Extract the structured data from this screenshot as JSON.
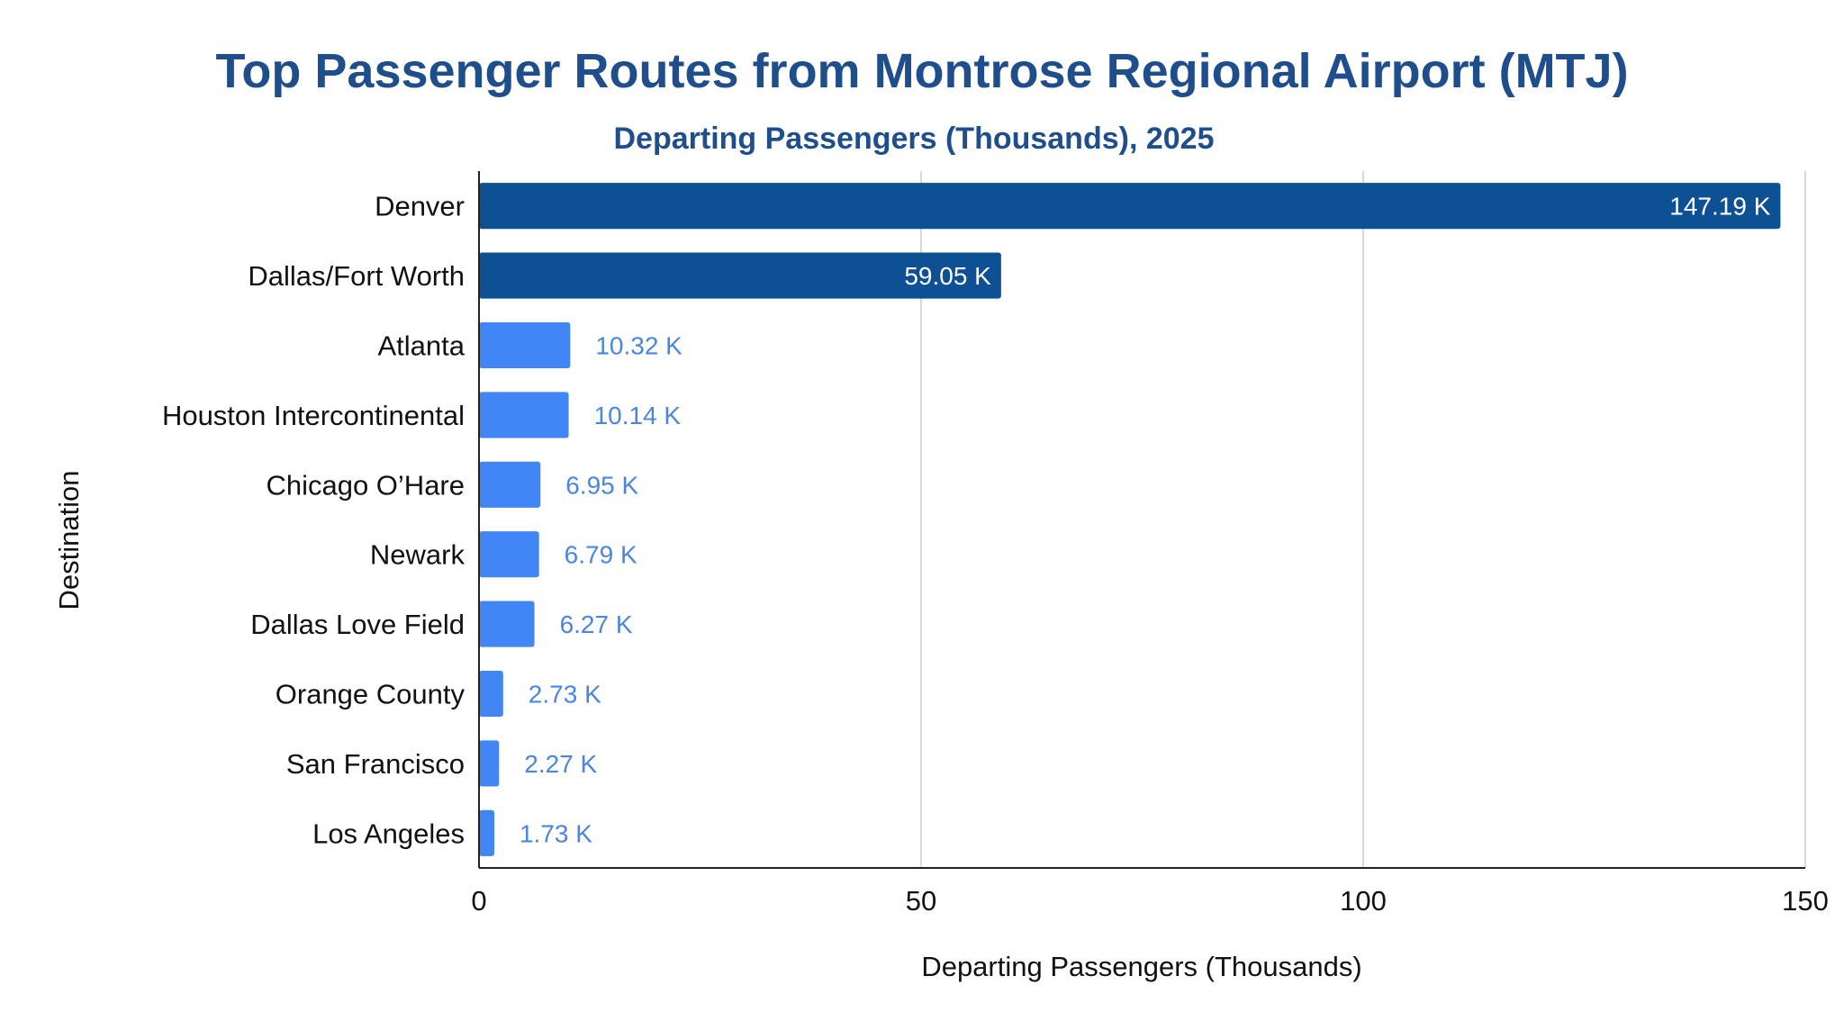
{
  "chart_data": {
    "type": "bar",
    "orientation": "horizontal",
    "title": "Top Passenger Routes from Montrose Regional Airport (MTJ)",
    "subtitle": "Departing Passengers (Thousands), 2025",
    "xlabel": "Departing Passengers (Thousands)",
    "ylabel": "Destination",
    "xlim": [
      0,
      150
    ],
    "xticks": [
      0,
      50,
      100,
      150
    ],
    "grid": true,
    "categories": [
      "Denver",
      "Dallas/Fort Worth",
      "Atlanta",
      "Houston Intercontinental",
      "Chicago O’Hare",
      "Newark",
      "Dallas Love Field",
      "Orange County",
      "San Francisco",
      "Los Angeles"
    ],
    "values": [
      147.19,
      59.05,
      10.32,
      10.14,
      6.95,
      6.79,
      6.27,
      2.73,
      2.27,
      1.73
    ],
    "data_labels": [
      "147.19 K",
      "59.05 K",
      "10.32 K",
      "10.14 K",
      "6.95 K",
      "6.79 K",
      "6.27 K",
      "2.73 K",
      "2.27 K",
      "1.73 K"
    ],
    "colors": {
      "highlight": "#0d5194",
      "default": "#4285f4",
      "label_inside": "#ffffff",
      "label_outside": "#4a86e0",
      "title": "#1f4e8c"
    },
    "highlighted": [
      "Denver",
      "Dallas/Fort Worth"
    ]
  }
}
